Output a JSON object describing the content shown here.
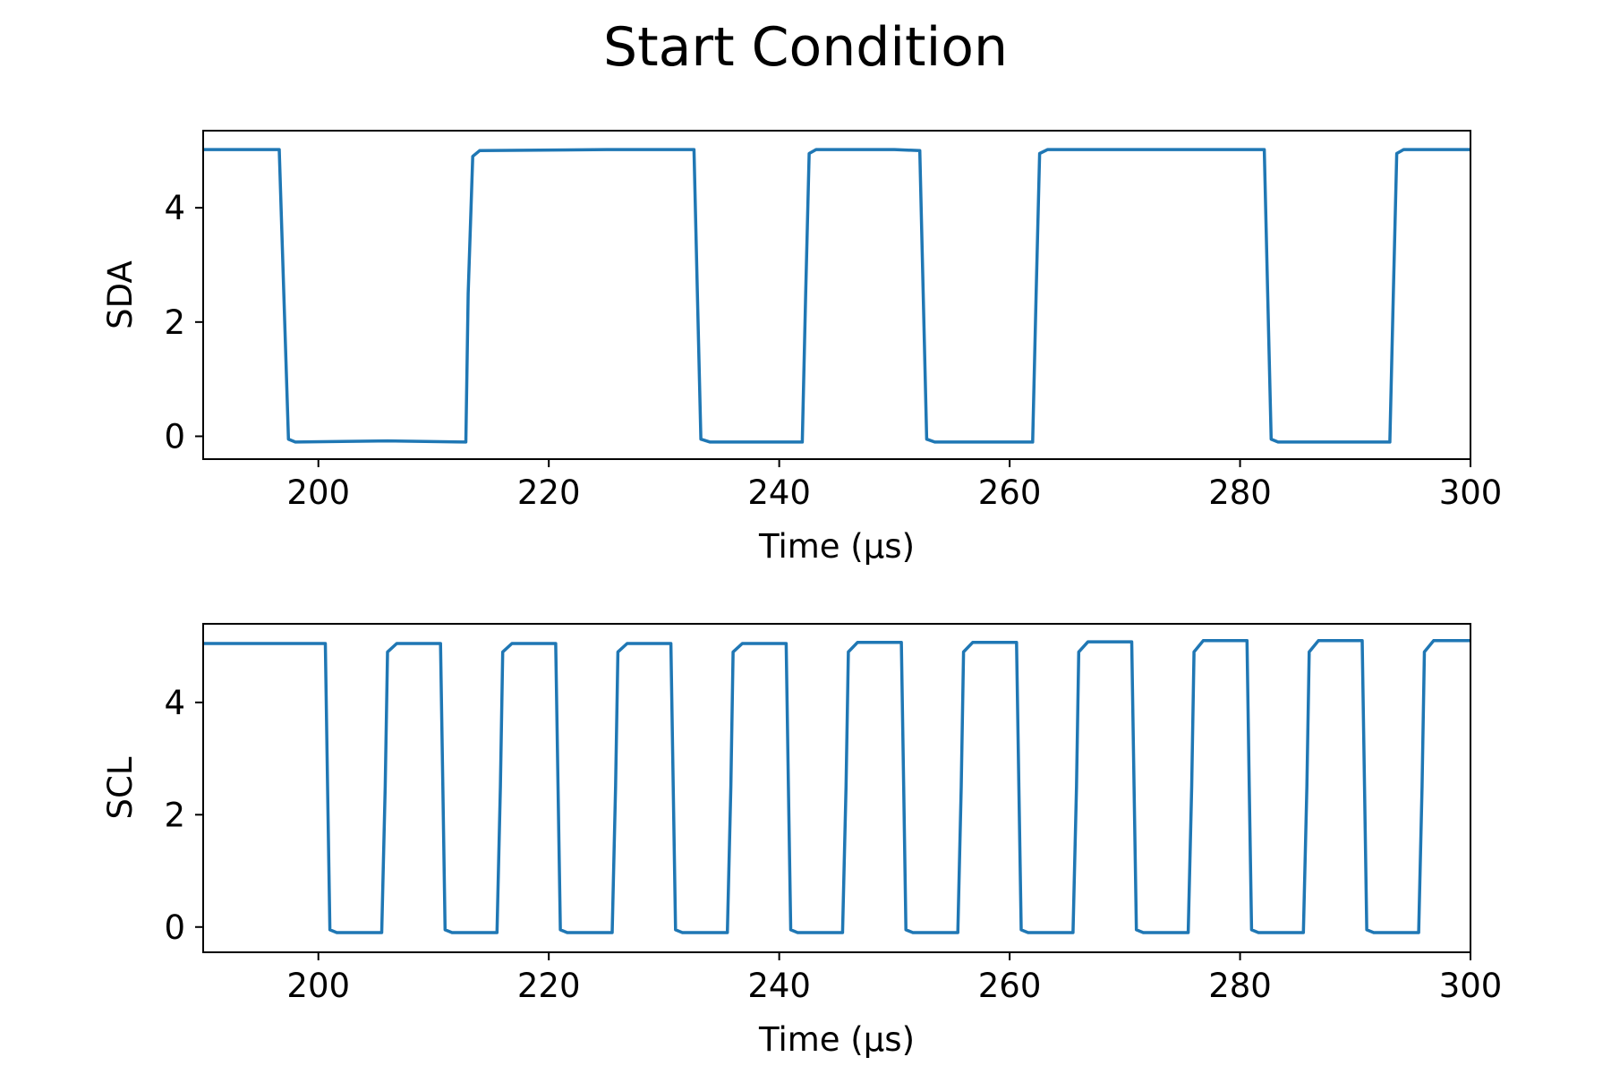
{
  "title": "Start Condition",
  "colors": {
    "line": "#1f77b4",
    "axes": "#000000",
    "background": "#ffffff"
  },
  "chart_data": [
    {
      "type": "line",
      "ylabel": "SDA",
      "xlabel": "Time (µs)",
      "xlim": [
        190,
        300
      ],
      "ylim": [
        -0.4,
        5.35
      ],
      "xticks": [
        200,
        220,
        240,
        260,
        280,
        300
      ],
      "yticks": [
        0,
        2,
        4
      ],
      "grid": false,
      "series": [
        {
          "x": [
            190,
            196.6,
            197.0,
            197.4,
            198,
            206,
            212.8,
            213.0,
            213.4,
            214,
            225,
            232.6,
            232.9,
            233.2,
            234,
            242.0,
            242.3,
            242.6,
            243.2,
            250,
            252.2,
            252.5,
            252.8,
            253.5,
            262.0,
            262.3,
            262.6,
            263.3,
            275,
            282.1,
            282.4,
            282.7,
            283.3,
            293.0,
            293.3,
            293.6,
            294.2,
            300
          ],
          "y": [
            5.02,
            5.02,
            2.5,
            -0.05,
            -0.1,
            -0.08,
            -0.1,
            2.5,
            4.9,
            5.0,
            5.02,
            5.02,
            2.5,
            -0.05,
            -0.1,
            -0.1,
            2.5,
            4.95,
            5.02,
            5.02,
            5.0,
            2.5,
            -0.05,
            -0.1,
            -0.1,
            2.5,
            4.95,
            5.02,
            5.02,
            5.02,
            2.5,
            -0.05,
            -0.1,
            -0.1,
            2.5,
            4.95,
            5.02,
            5.02
          ]
        }
      ]
    },
    {
      "type": "line",
      "ylabel": "SCL",
      "xlabel": "Time (µs)",
      "xlim": [
        190,
        300
      ],
      "ylim": [
        -0.45,
        5.4
      ],
      "xticks": [
        200,
        220,
        240,
        260,
        280,
        300
      ],
      "yticks": [
        0,
        2,
        4
      ],
      "grid": false,
      "series": [
        {
          "x": [
            190,
            200.6,
            200.8,
            201.0,
            201.6,
            205.5,
            205.8,
            206.0,
            206.8,
            210.6,
            210.8,
            211.0,
            211.6,
            215.5,
            215.8,
            216.0,
            216.8,
            220.6,
            220.8,
            221.0,
            221.6,
            225.5,
            225.8,
            226.0,
            226.8,
            230.6,
            230.8,
            231.0,
            231.6,
            235.5,
            235.8,
            236.0,
            236.8,
            240.6,
            240.8,
            241.0,
            241.6,
            245.5,
            245.8,
            246.0,
            246.8,
            250.6,
            250.8,
            251.0,
            251.6,
            255.5,
            255.8,
            256.0,
            256.8,
            260.6,
            260.8,
            261.0,
            261.6,
            265.5,
            265.8,
            266.0,
            266.8,
            270.6,
            270.8,
            271.0,
            271.6,
            275.5,
            275.8,
            276.0,
            276.8,
            280.6,
            280.8,
            281.0,
            281.6,
            285.5,
            285.8,
            286.0,
            286.8,
            290.6,
            290.8,
            291.0,
            291.6,
            295.5,
            295.8,
            296.0,
            296.8,
            300
          ],
          "y": [
            5.05,
            5.05,
            2.5,
            -0.05,
            -0.1,
            -0.1,
            2.5,
            4.9,
            5.05,
            5.05,
            2.5,
            -0.05,
            -0.1,
            -0.1,
            2.5,
            4.9,
            5.05,
            5.05,
            2.5,
            -0.05,
            -0.1,
            -0.1,
            2.5,
            4.9,
            5.05,
            5.05,
            2.5,
            -0.05,
            -0.1,
            -0.1,
            2.5,
            4.9,
            5.05,
            5.05,
            2.5,
            -0.05,
            -0.1,
            -0.1,
            2.5,
            4.9,
            5.07,
            5.07,
            2.5,
            -0.05,
            -0.1,
            -0.1,
            2.5,
            4.9,
            5.07,
            5.07,
            2.5,
            -0.05,
            -0.1,
            -0.1,
            2.5,
            4.9,
            5.08,
            5.08,
            2.5,
            -0.05,
            -0.1,
            -0.1,
            2.5,
            4.9,
            5.1,
            5.1,
            2.5,
            -0.05,
            -0.1,
            -0.1,
            2.5,
            4.9,
            5.1,
            5.1,
            2.5,
            -0.05,
            -0.1,
            -0.1,
            2.5,
            4.9,
            5.1,
            5.1
          ]
        }
      ]
    }
  ]
}
